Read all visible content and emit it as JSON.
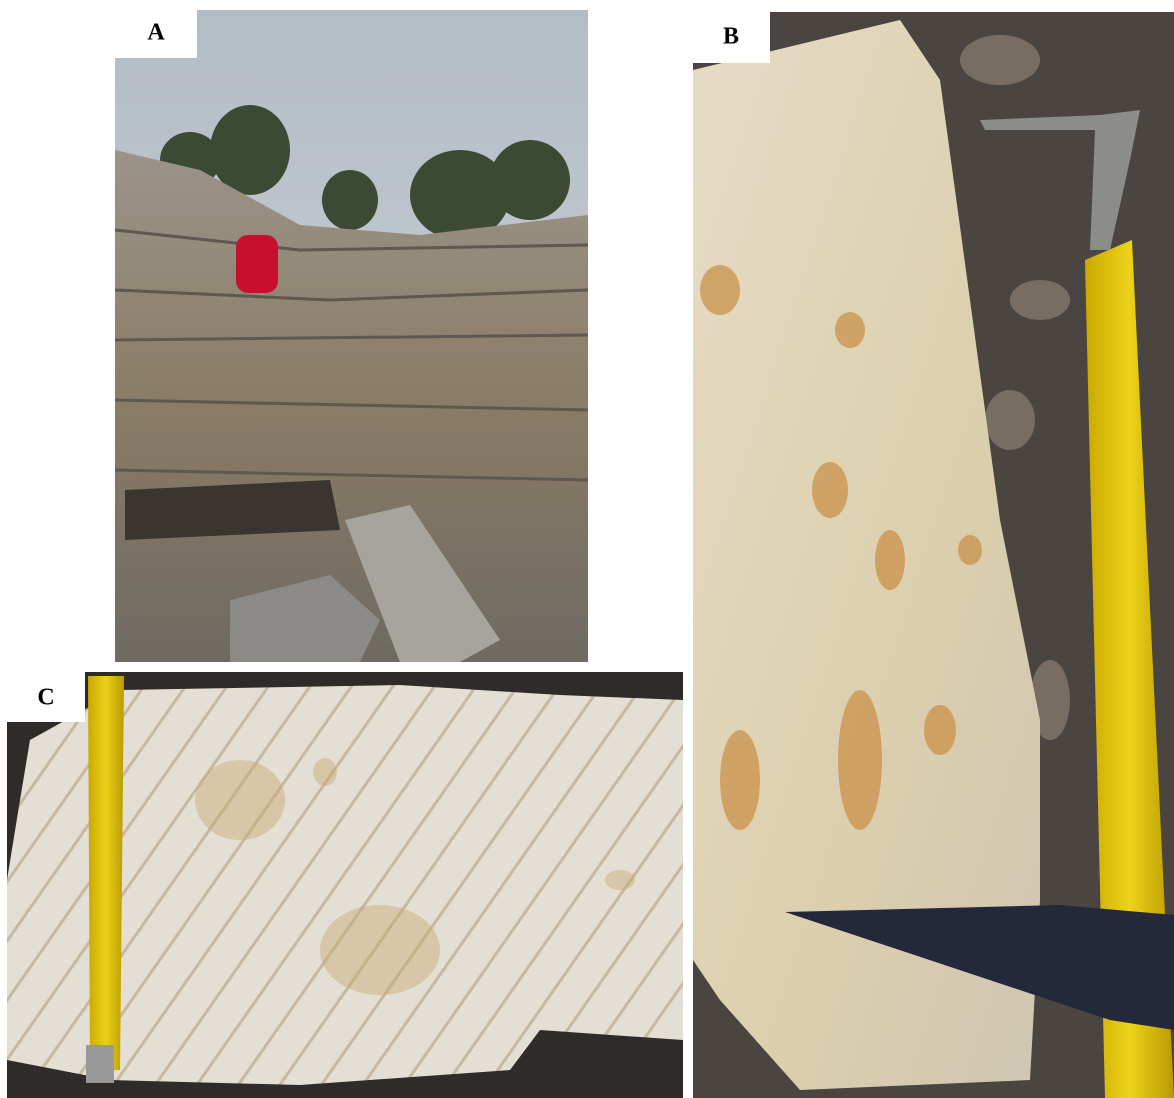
{
  "panels": [
    {
      "label": "A"
    },
    {
      "label": "B"
    },
    {
      "label": "C"
    }
  ]
}
